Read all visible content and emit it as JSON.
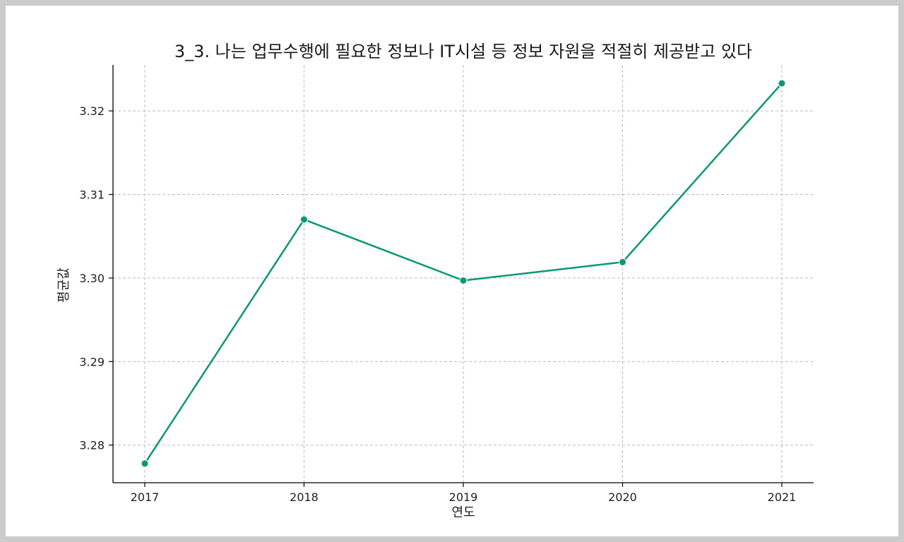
{
  "chart_data": {
    "type": "line",
    "title": "3_3. 나는 업무수행에 필요한 정보나 IT시설 등 정보 자원을 적절히 제공받고 있다",
    "xlabel": "연도",
    "ylabel": "평균값",
    "categories": [
      "2017",
      "2018",
      "2019",
      "2020",
      "2021"
    ],
    "series": [
      {
        "values": [
          3.2778,
          3.307,
          3.2997,
          3.3019,
          3.3233
        ]
      }
    ],
    "yticks": [
      3.28,
      3.29,
      3.3,
      3.31,
      3.32
    ],
    "ytick_labels": [
      "3.28",
      "3.29",
      "3.30",
      "3.31",
      "3.32"
    ],
    "ylim": [
      3.2755,
      3.3255
    ],
    "grid": true,
    "line_color": "#079a75",
    "marker": "circle"
  }
}
